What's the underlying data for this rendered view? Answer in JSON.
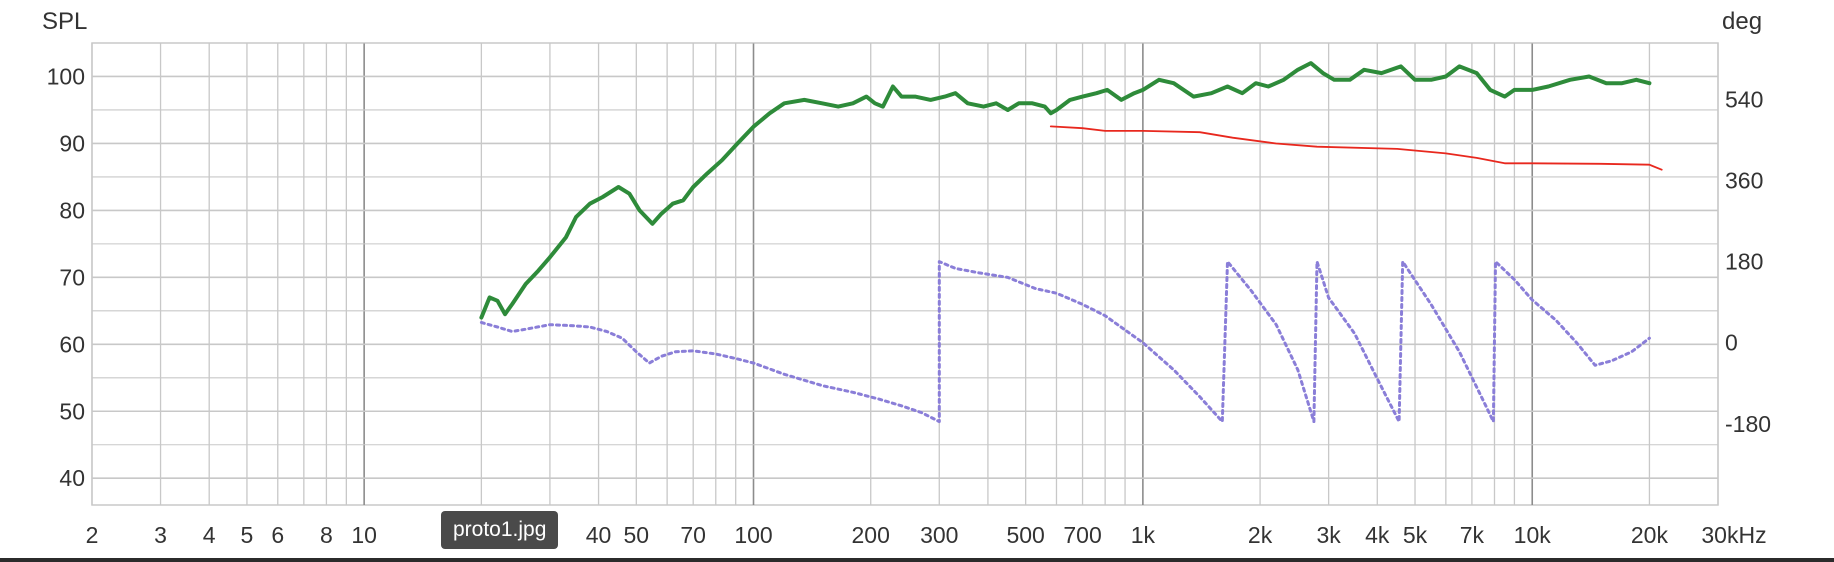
{
  "chart_data": {
    "type": "line",
    "x_scale": "log",
    "xlim": [
      2,
      30000
    ],
    "x_tick_labels": [
      {
        "v": 2,
        "t": "2"
      },
      {
        "v": 3,
        "t": "3"
      },
      {
        "v": 4,
        "t": "4"
      },
      {
        "v": 5,
        "t": "5"
      },
      {
        "v": 6,
        "t": "6"
      },
      {
        "v": 8,
        "t": "8"
      },
      {
        "v": 10,
        "t": "10"
      },
      {
        "v": 40,
        "t": "40"
      },
      {
        "v": 50,
        "t": "50"
      },
      {
        "v": 70,
        "t": "70"
      },
      {
        "v": 100,
        "t": "100"
      },
      {
        "v": 200,
        "t": "200"
      },
      {
        "v": 300,
        "t": "300"
      },
      {
        "v": 500,
        "t": "500"
      },
      {
        "v": 700,
        "t": "700"
      },
      {
        "v": 1000,
        "t": "1k"
      },
      {
        "v": 2000,
        "t": "2k"
      },
      {
        "v": 3000,
        "t": "3k"
      },
      {
        "v": 4000,
        "t": "4k"
      },
      {
        "v": 5000,
        "t": "5k"
      },
      {
        "v": 7000,
        "t": "7k"
      },
      {
        "v": 10000,
        "t": "10k"
      },
      {
        "v": 20000,
        "t": "20k"
      },
      {
        "v": 30000,
        "t": "30kHz"
      }
    ],
    "left_axis": {
      "label": "SPL",
      "lim": [
        36,
        105
      ],
      "ticks": [
        40,
        50,
        60,
        70,
        80,
        90,
        100
      ]
    },
    "right_axis": {
      "label": "deg",
      "lim": [
        -360,
        665
      ],
      "ticks": [
        540,
        360,
        180,
        0,
        -180
      ]
    },
    "grid": true,
    "series": [
      {
        "color": "#2e8b3a",
        "style": "solid-thick",
        "axis": "left",
        "points": [
          [
            20,
            64
          ],
          [
            21,
            67
          ],
          [
            22,
            66.5
          ],
          [
            23,
            64.5
          ],
          [
            24,
            66
          ],
          [
            26,
            69
          ],
          [
            28,
            71
          ],
          [
            30,
            73
          ],
          [
            33,
            76
          ],
          [
            35,
            79
          ],
          [
            38,
            81
          ],
          [
            41,
            82
          ],
          [
            45,
            83.5
          ],
          [
            48,
            82.5
          ],
          [
            51,
            80
          ],
          [
            55,
            78
          ],
          [
            58,
            79.5
          ],
          [
            62,
            81
          ],
          [
            66,
            81.5
          ],
          [
            70,
            83.5
          ],
          [
            76,
            85.5
          ],
          [
            83,
            87.5
          ],
          [
            91,
            90
          ],
          [
            100,
            92.5
          ],
          [
            110,
            94.5
          ],
          [
            120,
            96
          ],
          [
            135,
            96.5
          ],
          [
            150,
            96
          ],
          [
            165,
            95.5
          ],
          [
            180,
            96
          ],
          [
            195,
            97
          ],
          [
            205,
            96
          ],
          [
            215,
            95.5
          ],
          [
            228,
            98.5
          ],
          [
            240,
            97
          ],
          [
            260,
            97
          ],
          [
            285,
            96.5
          ],
          [
            310,
            97
          ],
          [
            330,
            97.5
          ],
          [
            355,
            96
          ],
          [
            390,
            95.5
          ],
          [
            420,
            96
          ],
          [
            450,
            95
          ],
          [
            480,
            96
          ],
          [
            520,
            96
          ],
          [
            560,
            95.5
          ],
          [
            580,
            94.5
          ],
          [
            600,
            95
          ],
          [
            650,
            96.5
          ],
          [
            700,
            97
          ],
          [
            760,
            97.5
          ],
          [
            810,
            98
          ],
          [
            880,
            96.5
          ],
          [
            950,
            97.5
          ],
          [
            1000,
            98
          ],
          [
            1100,
            99.5
          ],
          [
            1200,
            99
          ],
          [
            1350,
            97
          ],
          [
            1500,
            97.5
          ],
          [
            1650,
            98.5
          ],
          [
            1800,
            97.5
          ],
          [
            1950,
            99
          ],
          [
            2100,
            98.5
          ],
          [
            2300,
            99.5
          ],
          [
            2500,
            101
          ],
          [
            2700,
            102
          ],
          [
            2900,
            100.5
          ],
          [
            3100,
            99.5
          ],
          [
            3400,
            99.5
          ],
          [
            3700,
            101
          ],
          [
            4100,
            100.5
          ],
          [
            4600,
            101.5
          ],
          [
            5000,
            99.5
          ],
          [
            5500,
            99.5
          ],
          [
            6000,
            100
          ],
          [
            6500,
            101.5
          ],
          [
            7200,
            100.5
          ],
          [
            7800,
            98
          ],
          [
            8500,
            97
          ],
          [
            9000,
            98
          ],
          [
            10000,
            98
          ],
          [
            11000,
            98.5
          ],
          [
            12500,
            99.5
          ],
          [
            14000,
            100
          ],
          [
            15500,
            99
          ],
          [
            17000,
            99
          ],
          [
            18500,
            99.5
          ],
          [
            20000,
            99
          ]
        ]
      },
      {
        "color": "#e8281e",
        "style": "solid-thin",
        "axis": "right",
        "points": [
          [
            580,
            480
          ],
          [
            700,
            476
          ],
          [
            800,
            470
          ],
          [
            1000,
            470
          ],
          [
            1400,
            467
          ],
          [
            1700,
            455
          ],
          [
            2200,
            442
          ],
          [
            2800,
            435
          ],
          [
            4500,
            430
          ],
          [
            6000,
            420
          ],
          [
            7200,
            410
          ],
          [
            8500,
            398
          ],
          [
            10000,
            398
          ],
          [
            15000,
            397
          ],
          [
            20000,
            395
          ],
          [
            21500,
            384
          ]
        ]
      },
      {
        "color": "#8a7ed8",
        "style": "dotted",
        "axis": "right",
        "points": [
          [
            20,
            45
          ],
          [
            22,
            35
          ],
          [
            24,
            25
          ],
          [
            26,
            30
          ],
          [
            30,
            40
          ],
          [
            34,
            38
          ],
          [
            38,
            35
          ],
          [
            42,
            25
          ],
          [
            46,
            10
          ],
          [
            50,
            -20
          ],
          [
            54,
            -45
          ],
          [
            58,
            -30
          ],
          [
            63,
            -20
          ],
          [
            70,
            -18
          ],
          [
            80,
            -25
          ],
          [
            90,
            -35
          ],
          [
            100,
            -45
          ],
          [
            120,
            -70
          ],
          [
            150,
            -95
          ],
          [
            180,
            -110
          ],
          [
            210,
            -125
          ],
          [
            240,
            -140
          ],
          [
            270,
            -155
          ],
          [
            300,
            -175
          ],
          [
            300,
            180
          ],
          [
            330,
            165
          ],
          [
            380,
            155
          ],
          [
            450,
            145
          ],
          [
            530,
            120
          ],
          [
            600,
            110
          ],
          [
            700,
            85
          ],
          [
            800,
            60
          ],
          [
            1000,
            0
          ],
          [
            1200,
            -60
          ],
          [
            1400,
            -120
          ],
          [
            1600,
            -175
          ],
          [
            1650,
            180
          ],
          [
            1900,
            115
          ],
          [
            2200,
            40
          ],
          [
            2500,
            -60
          ],
          [
            2750,
            -175
          ],
          [
            2800,
            180
          ],
          [
            3000,
            100
          ],
          [
            3500,
            20
          ],
          [
            4000,
            -80
          ],
          [
            4550,
            -175
          ],
          [
            4650,
            180
          ],
          [
            5500,
            85
          ],
          [
            6500,
            -20
          ],
          [
            7500,
            -130
          ],
          [
            7950,
            -175
          ],
          [
            8050,
            180
          ],
          [
            9000,
            140
          ],
          [
            10000,
            95
          ],
          [
            11500,
            50
          ],
          [
            13000,
            0
          ],
          [
            14500,
            -50
          ],
          [
            16000,
            -40
          ],
          [
            18000,
            -20
          ],
          [
            20000,
            10
          ]
        ]
      }
    ]
  },
  "tooltip": "proto1.jpg",
  "colors": {
    "grid": "#c8c8c8",
    "grid_major": "#8c8c8c",
    "text": "#333333",
    "tooltip_bg": "#4a4a4a"
  }
}
